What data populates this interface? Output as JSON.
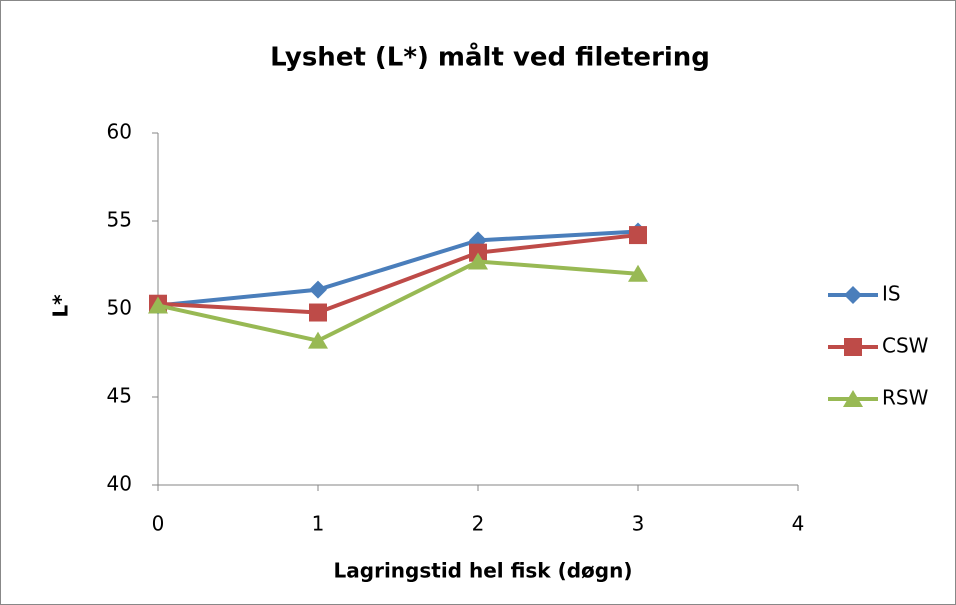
{
  "chart_data": {
    "type": "line",
    "title": "Lyshet (L*)  målt ved filetering",
    "x_label": "Lagringstid hel fisk (døgn)",
    "y_label": "L*",
    "x": [
      0,
      1,
      2,
      3
    ],
    "series": [
      {
        "name": "IS",
        "color": "#4a7ebb",
        "marker": "diamond",
        "values": [
          50.2,
          51.1,
          53.9,
          54.4
        ]
      },
      {
        "name": "CSW",
        "color": "#be4b48",
        "marker": "square",
        "values": [
          50.3,
          49.8,
          53.2,
          54.2
        ]
      },
      {
        "name": "RSW",
        "color": "#98b954",
        "marker": "triangle",
        "values": [
          50.2,
          48.2,
          52.7,
          52.0
        ]
      }
    ],
    "xlim": [
      0,
      4
    ],
    "xticks": [
      0,
      1,
      2,
      3,
      4
    ],
    "ylim": [
      40,
      60
    ],
    "yticks": [
      40,
      45,
      50,
      55,
      60
    ],
    "grid": false,
    "legend": "right"
  }
}
